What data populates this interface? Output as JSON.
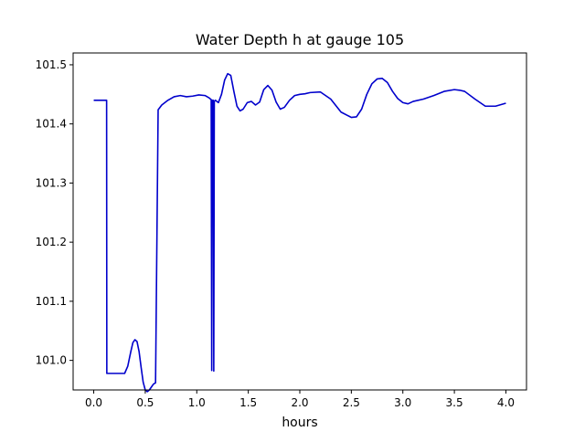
{
  "chart_data": {
    "type": "line",
    "title": "Water Depth h at gauge 105",
    "xlabel": "hours",
    "ylabel": "",
    "xlim": [
      -0.2,
      4.2
    ],
    "ylim": [
      100.95,
      101.52
    ],
    "xticks": [
      0.0,
      0.5,
      1.0,
      1.5,
      2.0,
      2.5,
      3.0,
      3.5,
      4.0
    ],
    "xtick_labels": [
      "0.0",
      "0.5",
      "1.0",
      "1.5",
      "2.0",
      "2.5",
      "3.0",
      "3.5",
      "4.0"
    ],
    "yticks": [
      101.0,
      101.1,
      101.2,
      101.3,
      101.4,
      101.5
    ],
    "ytick_labels": [
      "101.0",
      "101.1",
      "101.2",
      "101.3",
      "101.4",
      "101.5"
    ],
    "grid": false,
    "series": [
      {
        "color": "#0000cc",
        "x": [
          0.0,
          0.125,
          0.127,
          0.3,
          0.33,
          0.36,
          0.38,
          0.4,
          0.42,
          0.44,
          0.46,
          0.48,
          0.5,
          0.52,
          0.54,
          0.56,
          0.58,
          0.6,
          0.625,
          0.63,
          0.66,
          0.72,
          0.78,
          0.84,
          0.9,
          0.96,
          1.02,
          1.08,
          1.12,
          1.14,
          1.145,
          1.15,
          1.16,
          1.165,
          1.17,
          1.18,
          1.21,
          1.24,
          1.27,
          1.3,
          1.33,
          1.36,
          1.39,
          1.42,
          1.45,
          1.49,
          1.53,
          1.57,
          1.61,
          1.65,
          1.69,
          1.73,
          1.77,
          1.81,
          1.85,
          1.9,
          1.95,
          2.0,
          2.05,
          2.1,
          2.2,
          2.3,
          2.4,
          2.5,
          2.55,
          2.6,
          2.65,
          2.7,
          2.75,
          2.8,
          2.85,
          2.9,
          2.95,
          3.0,
          3.05,
          3.1,
          3.2,
          3.3,
          3.4,
          3.5,
          3.55,
          3.6,
          3.7,
          3.8,
          3.9,
          4.0
        ],
        "y": [
          101.44,
          101.44,
          100.978,
          100.978,
          100.99,
          101.015,
          101.03,
          101.035,
          101.032,
          101.015,
          100.988,
          100.963,
          100.95,
          100.947,
          100.95,
          100.955,
          100.96,
          100.962,
          101.424,
          101.425,
          101.432,
          101.44,
          101.446,
          101.448,
          101.446,
          101.447,
          101.449,
          101.448,
          101.444,
          101.441,
          100.983,
          101.44,
          101.44,
          100.982,
          101.438,
          101.44,
          101.436,
          101.45,
          101.474,
          101.485,
          101.482,
          101.455,
          101.43,
          101.422,
          101.425,
          101.436,
          101.438,
          101.432,
          101.437,
          101.458,
          101.465,
          101.457,
          101.437,
          101.425,
          101.428,
          101.44,
          101.448,
          101.45,
          101.451,
          101.453,
          101.454,
          101.442,
          101.42,
          101.411,
          101.412,
          101.425,
          101.45,
          101.468,
          101.476,
          101.477,
          101.47,
          101.455,
          101.443,
          101.436,
          101.434,
          101.438,
          101.442,
          101.448,
          101.455,
          101.458,
          101.457,
          101.455,
          101.442,
          101.43,
          101.43,
          101.435
        ]
      }
    ]
  }
}
